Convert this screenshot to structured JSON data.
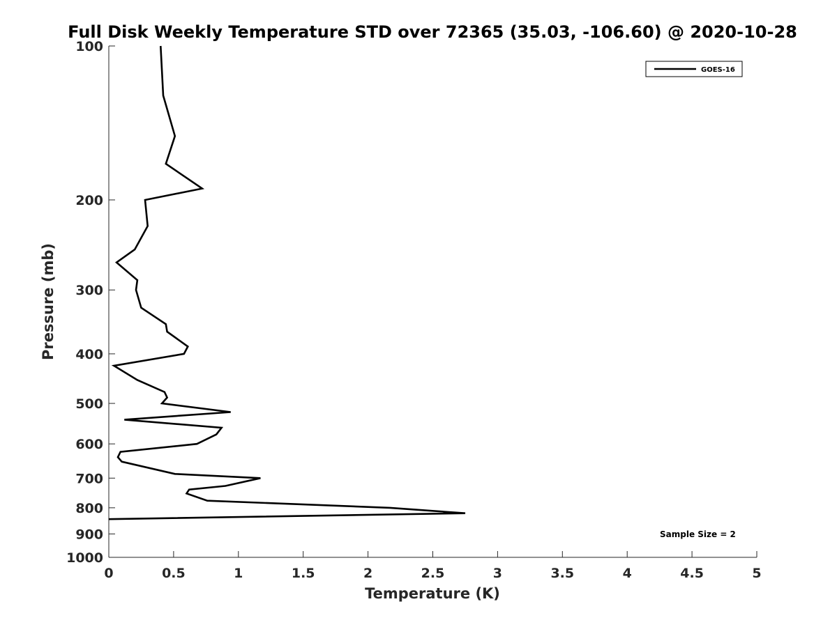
{
  "chart_data": {
    "type": "line",
    "title": "Full Disk Weekly Temperature STD over 72365 (35.03, -106.60) @ 2020-10-28",
    "xlabel": "Temperature (K)",
    "ylabel": "Pressure (mb)",
    "xlim": [
      0,
      5
    ],
    "ylim": [
      1000,
      100
    ],
    "y_scale": "log",
    "y_reversed": true,
    "grid": false,
    "legend_position": "top-right",
    "x_ticks": [
      "0",
      "0.5",
      "1",
      "1.5",
      "2",
      "2.5",
      "3",
      "3.5",
      "4",
      "4.5",
      "5"
    ],
    "x_tick_values": [
      0,
      0.5,
      1,
      1.5,
      2,
      2.5,
      3,
      3.5,
      4,
      4.5,
      5
    ],
    "y_ticks": [
      "100",
      "200",
      "300",
      "400",
      "500",
      "600",
      "700",
      "800",
      "900",
      "1000"
    ],
    "y_tick_values": [
      100,
      200,
      300,
      400,
      500,
      600,
      700,
      800,
      900,
      1000
    ],
    "series": [
      {
        "name": "GOES-16",
        "color": "#000000",
        "points": [
          [
            0.4,
            100
          ],
          [
            0.42,
            125
          ],
          [
            0.51,
            150
          ],
          [
            0.44,
            170
          ],
          [
            0.72,
            190
          ],
          [
            0.28,
            200
          ],
          [
            0.3,
            225
          ],
          [
            0.2,
            250
          ],
          [
            0.06,
            265
          ],
          [
            0.22,
            287
          ],
          [
            0.21,
            300
          ],
          [
            0.25,
            325
          ],
          [
            0.44,
            350
          ],
          [
            0.45,
            362
          ],
          [
            0.61,
            387
          ],
          [
            0.58,
            400
          ],
          [
            0.04,
            422
          ],
          [
            0.22,
            450
          ],
          [
            0.43,
            475
          ],
          [
            0.45,
            487
          ],
          [
            0.41,
            500
          ],
          [
            0.94,
            520
          ],
          [
            0.12,
            538
          ],
          [
            0.87,
            558
          ],
          [
            0.83,
            575
          ],
          [
            0.68,
            600
          ],
          [
            0.09,
            622
          ],
          [
            0.07,
            637
          ],
          [
            0.1,
            650
          ],
          [
            0.51,
            687
          ],
          [
            1.17,
            700
          ],
          [
            0.9,
            725
          ],
          [
            0.62,
            737
          ],
          [
            0.6,
            750
          ],
          [
            0.76,
            775
          ],
          [
            2.17,
            800
          ],
          [
            2.75,
            820
          ],
          [
            0.0,
            842
          ]
        ]
      }
    ],
    "annotation": "Sample Size = 2"
  }
}
